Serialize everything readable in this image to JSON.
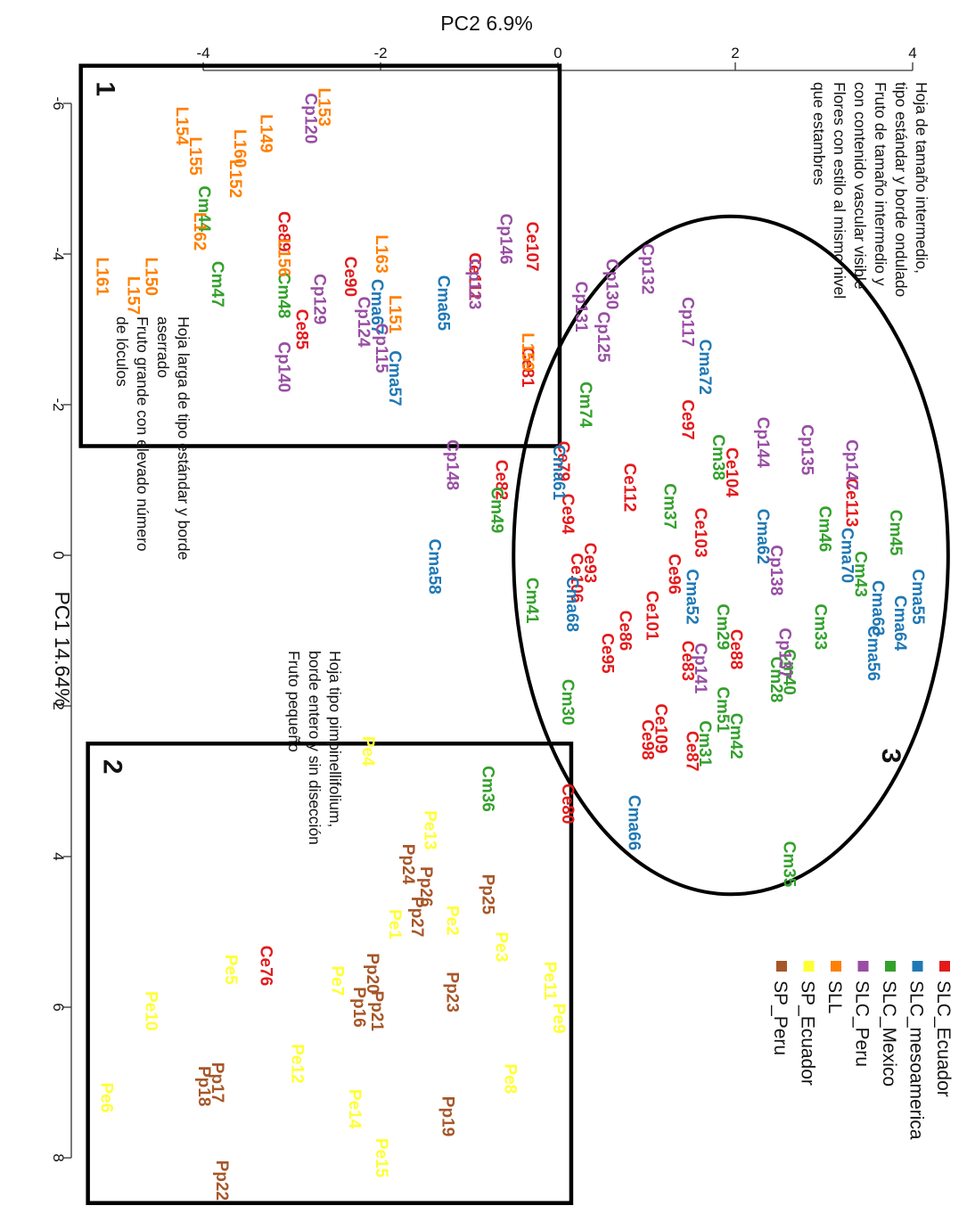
{
  "chart_data": {
    "type": "scatter",
    "orientation": "rotated-90-clockwise",
    "xlabel": "PC1 14.64%",
    "ylabel": "PC2 6.9%",
    "xlim": [
      -6.6,
      8.6
    ],
    "ylim": [
      -5.5,
      4.3
    ],
    "x_ticks": [
      "-6",
      "-4",
      "-2",
      "0",
      "2",
      "4",
      "6",
      "8"
    ],
    "y_ticks": [
      "-4",
      "-2",
      "0",
      "2",
      "4"
    ],
    "legend_position": "bottom-right",
    "legend": [
      {
        "name": "SLC_Ecuador",
        "color": "#e31a1c"
      },
      {
        "name": "SLC_mesoamerica",
        "color": "#1f78b4"
      },
      {
        "name": "SLC_Mexico",
        "color": "#33a02c"
      },
      {
        "name": "SLC_Peru",
        "color": "#984ea3"
      },
      {
        "name": "SLL",
        "color": "#ff7f00"
      },
      {
        "name": "SP_Ecuador",
        "color": "#ffff33"
      },
      {
        "name": "SP_Peru",
        "color": "#a65628"
      }
    ],
    "regions": [
      {
        "label": "1",
        "x": [
          -6.5,
          -1.45
        ],
        "y": [
          -5.38,
          0.02
        ],
        "text": [
          "Hoja larga de tipo estándar y borde",
          "aserrado",
          "Fruto grande con elevado número",
          "de lóculos"
        ]
      },
      {
        "label": "2",
        "x": [
          2.5,
          8.6
        ],
        "y": [
          -5.3,
          0.15
        ],
        "text": [
          "Hoja tipo pimpinellifolium,",
          "borde entero y sin disección",
          "Fruto pequeño"
        ]
      },
      {
        "label": "3",
        "cx": 0.0,
        "cy": 1.95,
        "rx": 4.5,
        "ry": 2.45,
        "text": [
          "Hoja de tamaño intermedio,",
          "tipo estándar y borde ondulado",
          "Fruto de tamaño intermedio y",
          "con contenido vascular visible",
          "Flores con estilo al mismo nivel",
          "que estambres"
        ]
      }
    ],
    "points": [
      {
        "label": "Ce107",
        "group": "SLC_Ecuador",
        "x": -4.1,
        "y": -0.3
      },
      {
        "label": "Ce111",
        "group": "SLC_Ecuador",
        "x": -3.7,
        "y": -0.95
      },
      {
        "label": "Ce89",
        "group": "SLC_Ecuador",
        "x": -4.3,
        "y": -3.1
      },
      {
        "label": "Ce90",
        "group": "SLC_Ecuador",
        "x": -3.7,
        "y": -2.35
      },
      {
        "label": "Ce85",
        "group": "SLC_Ecuador",
        "x": -3.0,
        "y": -2.9
      },
      {
        "label": "Ce81",
        "group": "SLC_Ecuador",
        "x": -2.5,
        "y": -0.35
      },
      {
        "label": "Ce82",
        "group": "SLC_Ecuador",
        "x": -1.0,
        "y": -0.65
      },
      {
        "label": "Ce79",
        "group": "SLC_Ecuador",
        "x": -1.25,
        "y": 0.05
      },
      {
        "label": "Ce97",
        "group": "SLC_Ecuador",
        "x": -1.8,
        "y": 1.45
      },
      {
        "label": "Ce104",
        "group": "SLC_Ecuador",
        "x": -1.1,
        "y": 1.95
      },
      {
        "label": "Ce112",
        "group": "SLC_Ecuador",
        "x": -0.9,
        "y": 0.8
      },
      {
        "label": "Ce94",
        "group": "SLC_Ecuador",
        "x": -0.55,
        "y": 0.1
      },
      {
        "label": "Ce103",
        "group": "SLC_Ecuador",
        "x": -0.3,
        "y": 1.6
      },
      {
        "label": "Ce96",
        "group": "SLC_Ecuador",
        "x": 0.25,
        "y": 1.3
      },
      {
        "label": "Ce93",
        "group": "SLC_Ecuador",
        "x": 0.1,
        "y": 0.35
      },
      {
        "label": "Ce106",
        "group": "SLC_Ecuador",
        "x": 0.3,
        "y": 0.2
      },
      {
        "label": "Ce86",
        "group": "SLC_Ecuador",
        "x": 1.0,
        "y": 0.75
      },
      {
        "label": "Ce101",
        "group": "SLC_Ecuador",
        "x": 0.8,
        "y": 1.05
      },
      {
        "label": "Ce95",
        "group": "SLC_Ecuador",
        "x": 1.3,
        "y": 0.55
      },
      {
        "label": "Ce83",
        "group": "SLC_Ecuador",
        "x": 1.4,
        "y": 1.45
      },
      {
        "label": "Ce88",
        "group": "SLC_Ecuador",
        "x": 1.25,
        "y": 2.0
      },
      {
        "label": "Ce113",
        "group": "SLC_Ecuador",
        "x": -0.7,
        "y": 3.3
      },
      {
        "label": "Ce109",
        "group": "SLC_Ecuador",
        "x": 2.3,
        "y": 1.15
      },
      {
        "label": "Ce98",
        "group": "SLC_Ecuador",
        "x": 2.45,
        "y": 1.0
      },
      {
        "label": "Ce87",
        "group": "SLC_Ecuador",
        "x": 2.6,
        "y": 1.5
      },
      {
        "label": "Ce80",
        "group": "SLC_Ecuador",
        "x": 3.3,
        "y": 0.1
      },
      {
        "label": "Ce76",
        "group": "SLC_Ecuador",
        "x": 5.45,
        "y": -3.3
      },
      {
        "label": "Cma65",
        "group": "SLC_mesoamerica",
        "x": -3.35,
        "y": -1.3
      },
      {
        "label": "Cma67",
        "group": "SLC_mesoamerica",
        "x": -3.3,
        "y": -2.05
      },
      {
        "label": "Cma57",
        "group": "SLC_mesoamerica",
        "x": -2.35,
        "y": -1.85
      },
      {
        "label": "Cma72",
        "group": "SLC_mesoamerica",
        "x": -2.5,
        "y": 1.65
      },
      {
        "label": "Cma61",
        "group": "SLC_mesoamerica",
        "x": -1.1,
        "y": 0.0
      },
      {
        "label": "Cma58",
        "group": "SLC_mesoamerica",
        "x": 0.15,
        "y": -1.4
      },
      {
        "label": "Cma68",
        "group": "SLC_mesoamerica",
        "x": 0.65,
        "y": 0.15
      },
      {
        "label": "Cma62",
        "group": "SLC_mesoamerica",
        "x": -0.25,
        "y": 2.3
      },
      {
        "label": "Cma70",
        "group": "SLC_mesoamerica",
        "x": 0.0,
        "y": 3.25
      },
      {
        "label": "Cma52",
        "group": "SLC_mesoamerica",
        "x": 0.55,
        "y": 1.5
      },
      {
        "label": "Cma55",
        "group": "SLC_mesoamerica",
        "x": 0.55,
        "y": 4.05
      },
      {
        "label": "Cma64",
        "group": "SLC_mesoamerica",
        "x": 0.9,
        "y": 3.85
      },
      {
        "label": "Cma63",
        "group": "SLC_mesoamerica",
        "x": 0.7,
        "y": 3.6
      },
      {
        "label": "Cma56",
        "group": "SLC_mesoamerica",
        "x": 1.3,
        "y": 3.55
      },
      {
        "label": "Cma66",
        "group": "SLC_mesoamerica",
        "x": 3.55,
        "y": 0.85
      },
      {
        "label": "Cm44",
        "group": "SLC_Mexico",
        "x": -4.6,
        "y": -4.0
      },
      {
        "label": "Cm48",
        "group": "SLC_Mexico",
        "x": -3.45,
        "y": -3.1
      },
      {
        "label": "Cm47",
        "group": "SLC_Mexico",
        "x": -3.6,
        "y": -3.85
      },
      {
        "label": "Cm74",
        "group": "SLC_Mexico",
        "x": -2.0,
        "y": 0.3
      },
      {
        "label": "Cm49",
        "group": "SLC_Mexico",
        "x": -0.6,
        "y": -0.7
      },
      {
        "label": "Cm37",
        "group": "SLC_Mexico",
        "x": -0.65,
        "y": 1.25
      },
      {
        "label": "Cm38",
        "group": "SLC_Mexico",
        "x": -1.3,
        "y": 1.8
      },
      {
        "label": "Cm45",
        "group": "SLC_Mexico",
        "x": -0.3,
        "y": 3.8
      },
      {
        "label": "Cm46",
        "group": "SLC_Mexico",
        "x": -0.35,
        "y": 3.0
      },
      {
        "label": "Cm43",
        "group": "SLC_Mexico",
        "x": 0.25,
        "y": 3.4
      },
      {
        "label": "Cm33",
        "group": "SLC_Mexico",
        "x": 0.95,
        "y": 2.95
      },
      {
        "label": "Cm41",
        "group": "SLC_Mexico",
        "x": 0.6,
        "y": -0.3
      },
      {
        "label": "Cm29",
        "group": "SLC_Mexico",
        "x": 0.95,
        "y": 1.85
      },
      {
        "label": "Cm40",
        "group": "SLC_Mexico",
        "x": 1.55,
        "y": 2.6
      },
      {
        "label": "Cm28",
        "group": "SLC_Mexico",
        "x": 1.65,
        "y": 2.45
      },
      {
        "label": "Cm51",
        "group": "SLC_Mexico",
        "x": 2.05,
        "y": 1.85
      },
      {
        "label": "Cm42",
        "group": "SLC_Mexico",
        "x": 2.4,
        "y": 2.0
      },
      {
        "label": "Cm31",
        "group": "SLC_Mexico",
        "x": 2.5,
        "y": 1.65
      },
      {
        "label": "Cm30",
        "group": "SLC_Mexico",
        "x": 1.95,
        "y": 0.1
      },
      {
        "label": "Cm36",
        "group": "SLC_Mexico",
        "x": 3.1,
        "y": -0.8
      },
      {
        "label": "Cm35",
        "group": "SLC_Mexico",
        "x": 4.1,
        "y": 2.6
      },
      {
        "label": "Cp120",
        "group": "SLC_Peru",
        "x": -5.8,
        "y": -2.8
      },
      {
        "label": "Cp146",
        "group": "SLC_Peru",
        "x": -4.2,
        "y": -0.6
      },
      {
        "label": "Cp123",
        "group": "SLC_Peru",
        "x": -3.6,
        "y": -0.95
      },
      {
        "label": "Cp129",
        "group": "SLC_Peru",
        "x": -3.4,
        "y": -2.7
      },
      {
        "label": "Cp140",
        "group": "SLC_Peru",
        "x": -2.5,
        "y": -3.1
      },
      {
        "label": "Cp115",
        "group": "SLC_Peru",
        "x": -2.75,
        "y": -2.0
      },
      {
        "label": "Cp124",
        "group": "SLC_Peru",
        "x": -3.1,
        "y": -2.2
      },
      {
        "label": "Cp132",
        "group": "SLC_Peru",
        "x": -3.8,
        "y": 1.0
      },
      {
        "label": "Cp130",
        "group": "SLC_Peru",
        "x": -3.6,
        "y": 0.6
      },
      {
        "label": "Cp131",
        "group": "SLC_Peru",
        "x": -3.3,
        "y": 0.25
      },
      {
        "label": "Cp117",
        "group": "SLC_Peru",
        "x": -3.1,
        "y": 1.45
      },
      {
        "label": "Cp125",
        "group": "SLC_Peru",
        "x": -2.9,
        "y": 0.5
      },
      {
        "label": "Cp148",
        "group": "SLC_Peru",
        "x": -1.2,
        "y": -1.2
      },
      {
        "label": "Cp144",
        "group": "SLC_Peru",
        "x": -1.5,
        "y": 2.3
      },
      {
        "label": "Cp135",
        "group": "SLC_Peru",
        "x": -1.4,
        "y": 2.8
      },
      {
        "label": "Cp147",
        "group": "SLC_Peru",
        "x": -1.2,
        "y": 3.3
      },
      {
        "label": "Cp137",
        "group": "SLC_Peru",
        "x": 1.3,
        "y": 2.55
      },
      {
        "label": "Cp141",
        "group": "SLC_Peru",
        "x": 1.5,
        "y": 1.6
      },
      {
        "label": "Cp138",
        "group": "SLC_Peru",
        "x": 0.2,
        "y": 2.45
      },
      {
        "label": "Pe4",
        "group": "SP_Ecuador",
        "x": 2.6,
        "y": -2.15
      },
      {
        "label": "Pe13",
        "group": "SP_Ecuador",
        "x": 3.65,
        "y": -1.45
      },
      {
        "label": "Pe2",
        "group": "SP_Ecuador",
        "x": 4.85,
        "y": -1.2
      },
      {
        "label": "Pe1",
        "group": "SP_Ecuador",
        "x": 4.9,
        "y": -1.85
      },
      {
        "label": "Pe3",
        "group": "SP_Ecuador",
        "x": 5.2,
        "y": -0.65
      },
      {
        "label": "Pe5",
        "group": "SP_Ecuador",
        "x": 5.5,
        "y": -3.7
      },
      {
        "label": "Pe7",
        "group": "SP_Ecuador",
        "x": 5.65,
        "y": -2.5
      },
      {
        "label": "Pe11",
        "group": "SP_Ecuador",
        "x": 5.65,
        "y": -0.1
      },
      {
        "label": "Pe9",
        "group": "SP_Ecuador",
        "x": 6.15,
        "y": 0.0
      },
      {
        "label": "Pe10",
        "group": "SP_Ecuador",
        "x": 6.05,
        "y": -4.6
      },
      {
        "label": "Pe12",
        "group": "SP_Ecuador",
        "x": 6.75,
        "y": -2.95
      },
      {
        "label": "Pe8",
        "group": "SP_Ecuador",
        "x": 6.95,
        "y": -0.55
      },
      {
        "label": "Pe6",
        "group": "SP_Ecuador",
        "x": 7.2,
        "y": -5.1
      },
      {
        "label": "Pe14",
        "group": "SP_Ecuador",
        "x": 7.35,
        "y": -2.3
      },
      {
        "label": "Pe15",
        "group": "SP_Ecuador",
        "x": 8.0,
        "y": -2.0
      },
      {
        "label": "Pp24",
        "group": "SP_Peru",
        "x": 4.1,
        "y": -1.7
      },
      {
        "label": "Pp26",
        "group": "SP_Peru",
        "x": 4.4,
        "y": -1.5
      },
      {
        "label": "Pp27",
        "group": "SP_Peru",
        "x": 4.8,
        "y": -1.6
      },
      {
        "label": "Pp25",
        "group": "SP_Peru",
        "x": 4.5,
        "y": -0.8
      },
      {
        "label": "Pp20",
        "group": "SP_Peru",
        "x": 5.55,
        "y": -2.1
      },
      {
        "label": "Pp21",
        "group": "SP_Peru",
        "x": 6.05,
        "y": -2.05
      },
      {
        "label": "Pp16",
        "group": "SP_Peru",
        "x": 6.0,
        "y": -2.25
      },
      {
        "label": "Pp23",
        "group": "SP_Peru",
        "x": 5.8,
        "y": -1.2
      },
      {
        "label": "Pp17",
        "group": "SP_Peru",
        "x": 7.0,
        "y": -3.85
      },
      {
        "label": "Pp18",
        "group": "SP_Peru",
        "x": 7.05,
        "y": -4.0
      },
      {
        "label": "Pp19",
        "group": "SP_Peru",
        "x": 7.45,
        "y": -1.25
      },
      {
        "label": "Pp22",
        "group": "SP_Peru",
        "x": 8.3,
        "y": -3.8
      },
      {
        "label": "L153",
        "group": "SLL",
        "x": -5.95,
        "y": -2.65
      },
      {
        "label": "L149",
        "group": "SLL",
        "x": -5.6,
        "y": -3.3
      },
      {
        "label": "L160",
        "group": "SLL",
        "x": -5.4,
        "y": -3.6
      },
      {
        "label": "L152",
        "group": "SLL",
        "x": -5.0,
        "y": -3.65
      },
      {
        "label": "L154",
        "group": "SLL",
        "x": -5.7,
        "y": -4.25
      },
      {
        "label": "L155",
        "group": "SLL",
        "x": -5.3,
        "y": -4.1
      },
      {
        "label": "L162",
        "group": "SLL",
        "x": -4.3,
        "y": -4.05
      },
      {
        "label": "L156",
        "group": "SLL",
        "x": -3.95,
        "y": -3.1
      },
      {
        "label": "L163",
        "group": "SLL",
        "x": -4.0,
        "y": -2.0
      },
      {
        "label": "L151",
        "group": "SLL",
        "x": -3.2,
        "y": -1.85
      },
      {
        "label": "L150",
        "group": "SLL",
        "x": -3.7,
        "y": -4.6
      },
      {
        "label": "L157",
        "group": "SLL",
        "x": -3.45,
        "y": -4.8
      },
      {
        "label": "L161",
        "group": "SLL",
        "x": -3.7,
        "y": -5.15
      },
      {
        "label": "L159",
        "group": "SLL",
        "x": -2.7,
        "y": -0.35
      }
    ]
  }
}
